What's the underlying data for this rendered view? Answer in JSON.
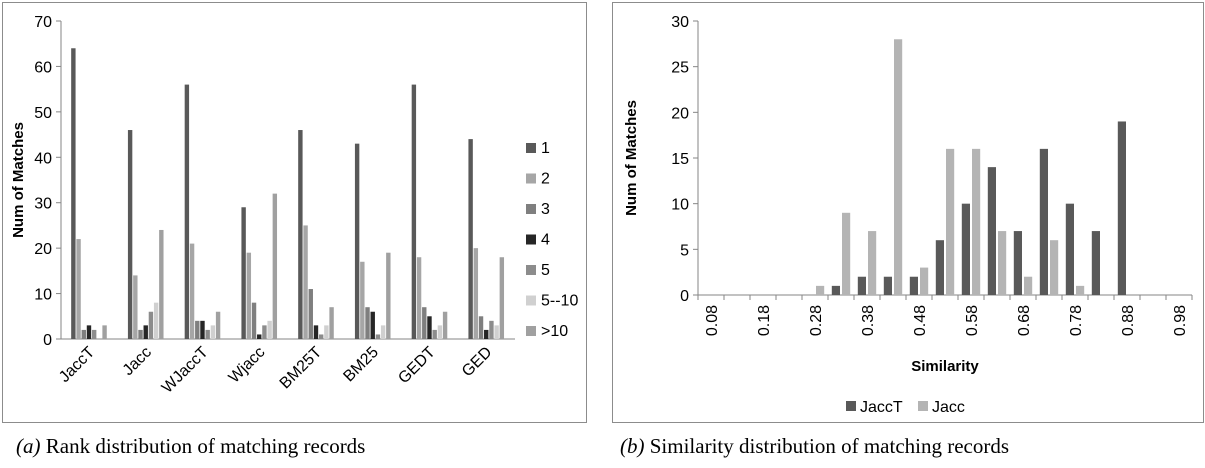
{
  "charts": [
    {
      "id": "a",
      "caption_label": "(a)",
      "caption_text": " Rank distribution of matching records",
      "chart_data": {
        "type": "bar",
        "title": "",
        "xlabel": "",
        "ylabel": "Num of Matches",
        "ylim": [
          0,
          70
        ],
        "ytick_step": 10,
        "grid": false,
        "legend_position": "right",
        "categories": [
          "JaccT",
          "Jacc",
          "WJaccT",
          "Wjacc",
          "BM25T",
          "BM25",
          "GEDT",
          "GED"
        ],
        "series": [
          {
            "name": "1",
            "color": "#595959",
            "values": [
              64,
              46,
              56,
              29,
              46,
              43,
              56,
              44
            ]
          },
          {
            "name": "2",
            "color": "#a6a6a6",
            "values": [
              22,
              14,
              21,
              19,
              25,
              17,
              18,
              20
            ]
          },
          {
            "name": "3",
            "color": "#7f7f7f",
            "values": [
              2,
              2,
              4,
              8,
              11,
              7,
              7,
              5
            ]
          },
          {
            "name": "4",
            "color": "#262626",
            "values": [
              3,
              3,
              4,
              1,
              3,
              6,
              5,
              2
            ]
          },
          {
            "name": "5",
            "color": "#8c8c8c",
            "values": [
              2,
              6,
              2,
              3,
              1,
              1,
              2,
              4
            ]
          },
          {
            "name": "5--10",
            "color": "#d0d0d0",
            "values": [
              0,
              8,
              3,
              4,
              3,
              3,
              3,
              3
            ]
          },
          {
            "name": ">10",
            "color": "#a0a0a0",
            "values": [
              3,
              24,
              6,
              32,
              7,
              19,
              6,
              18
            ]
          }
        ]
      }
    },
    {
      "id": "b",
      "caption_label": "(b)",
      "caption_text": " Similarity distribution of matching records",
      "chart_data": {
        "type": "bar",
        "title": "",
        "xlabel": "Similarity",
        "ylabel": "Num of Matches",
        "ylim": [
          0,
          30
        ],
        "ytick_step": 5,
        "grid": false,
        "legend_position": "bottom",
        "categories": [
          "0.08",
          "0.13",
          "0.18",
          "0.23",
          "0.28",
          "0.33",
          "0.38",
          "0.43",
          "0.48",
          "0.53",
          "0.58",
          "0.63",
          "0.68",
          "0.73",
          "0.78",
          "0.83",
          "0.88",
          "0.93",
          "0.98"
        ],
        "category_labels_shown": [
          "0.08",
          "0.18",
          "0.28",
          "0.38",
          "0.48",
          "0.58",
          "0.68",
          "0.78",
          "0.88",
          "0.98"
        ],
        "series": [
          {
            "name": "JaccT",
            "color": "#595959",
            "values": [
              0,
              0,
              0,
              0,
              0,
              1,
              2,
              2,
              2,
              6,
              10,
              14,
              7,
              16,
              10,
              7,
              19,
              0,
              0
            ]
          },
          {
            "name": "Jacc",
            "color": "#b4b4b4",
            "values": [
              0,
              0,
              0,
              0,
              1,
              9,
              7,
              28,
              3,
              16,
              16,
              7,
              2,
              6,
              1,
              0,
              0,
              0,
              0
            ]
          }
        ]
      }
    }
  ]
}
